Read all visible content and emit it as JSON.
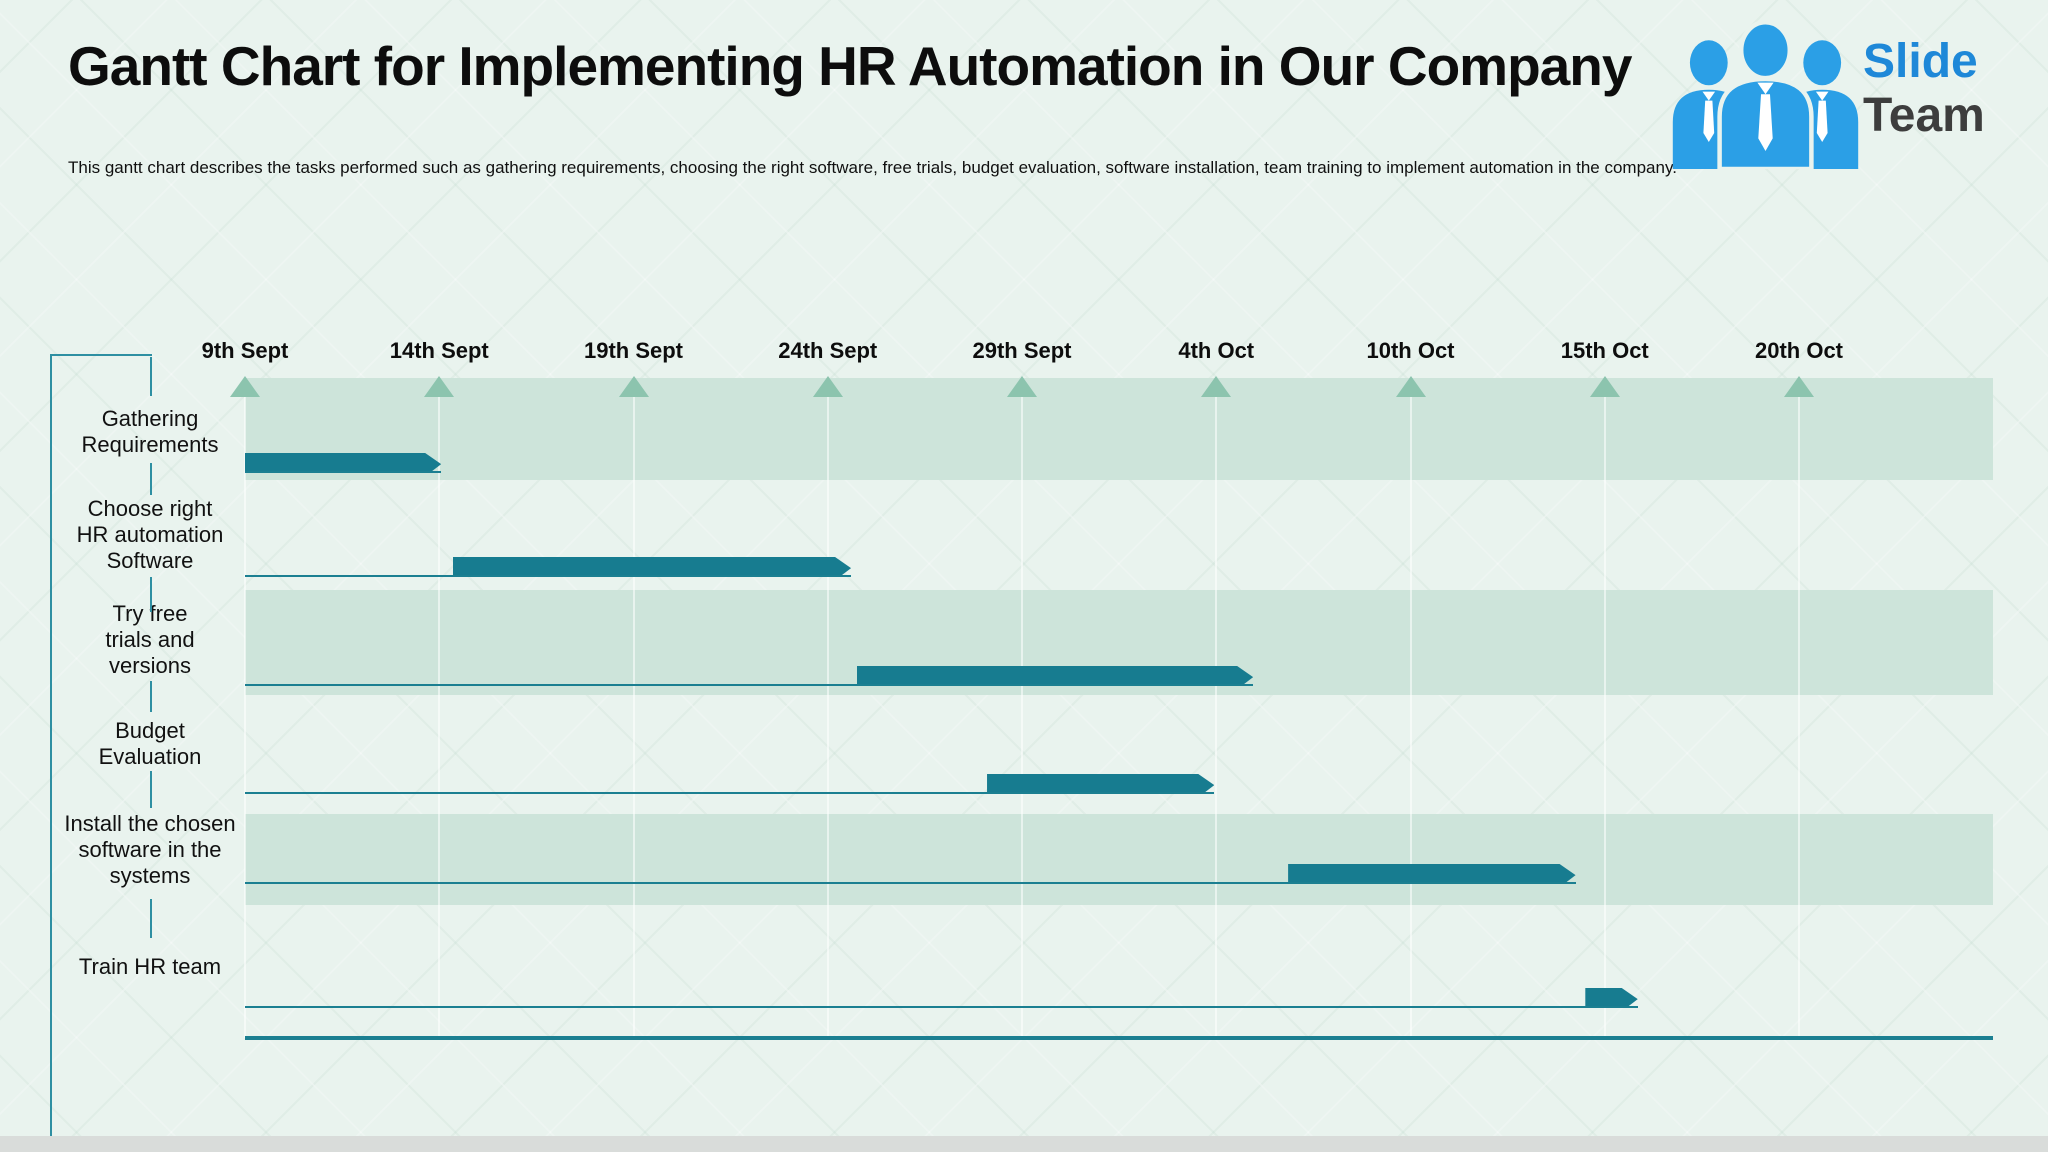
{
  "page": {
    "title": "Gantt Chart for Implementing HR Automation in Our Company",
    "subtitle": "This gantt chart describes the tasks performed such as gathering requirements, choosing the right software, free trials, budget evaluation, software installation, team training to implement automation in the company."
  },
  "logo": {
    "slide": "Slide",
    "team": "Team",
    "people_color": "#2b9fe6",
    "slide_color": "#1e88d8",
    "team_color": "#3d3d3d"
  },
  "chart_data": {
    "type": "gantt",
    "title": "Gantt Chart for Implementing HR Automation in Our Company",
    "timeline_labels": [
      "9th Sept",
      "14th Sept",
      "19th Sept",
      "24th Sept",
      "29th Sept",
      "4th Oct",
      "10th Oct",
      "15th Oct",
      "20th Oct"
    ],
    "timeline_axis": "dates",
    "grid": true,
    "tasks": [
      {
        "name": "Gathering Requirements",
        "label_lines": [
          "Gathering",
          "Requirements"
        ],
        "start_col": 0.0,
        "end_col": 1.01,
        "start_label": "9th Sept",
        "end_label": "14th Sept",
        "row_shaded": true
      },
      {
        "name": "Choose right HR automation Software",
        "label_lines": [
          "Choose right",
          "HR automation",
          "Software"
        ],
        "start_col": 1.07,
        "end_col": 3.12,
        "start_label": "14th Sept",
        "end_label": "24th Sept",
        "row_shaded": false
      },
      {
        "name": "Try free trials and versions",
        "label_lines": [
          "Try free",
          "trials and",
          "versions"
        ],
        "start_col": 3.15,
        "end_col": 5.19,
        "start_label": "24th Sept",
        "end_label": "4th Oct",
        "row_shaded": true
      },
      {
        "name": "Budget Evaluation",
        "label_lines": [
          "Budget",
          "Evaluation"
        ],
        "start_col": 3.82,
        "end_col": 4.99,
        "start_label": "28th Sept",
        "end_label": "4th Oct",
        "row_shaded": false
      },
      {
        "name": "Install the chosen software in the systems",
        "label_lines": [
          "Install the chosen",
          "software in the",
          "systems"
        ],
        "start_col": 5.37,
        "end_col": 6.85,
        "start_label": "5th Oct",
        "end_label": "14th Oct",
        "row_shaded": true
      },
      {
        "name": "Train HR team",
        "label_lines": [
          "Train HR team"
        ],
        "start_col": 6.9,
        "end_col": 7.17,
        "start_label": "14th Oct",
        "end_label": "16th Oct",
        "row_shaded": false
      }
    ],
    "colors": {
      "bar": "#177c90",
      "row_band": "#cde4da",
      "marker_triangle": "#8cc4ae",
      "baseline": "#1b7f91",
      "background": "#e9f3ee"
    }
  }
}
